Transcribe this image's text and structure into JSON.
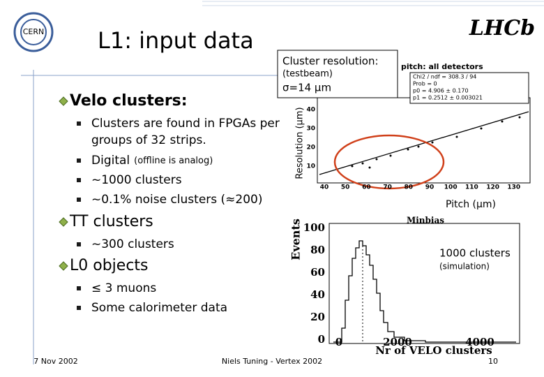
{
  "header": {
    "title": "L1: input data",
    "logo_left": "CERN",
    "logo_right": "LHCb"
  },
  "sections": [
    {
      "heading": "Velo clusters:",
      "items": [
        {
          "text": "Clusters are found in FPGAs per"
        },
        {
          "text": "groups of 32 strips."
        },
        {
          "text": "Digital",
          "note": "(offline is analog)"
        },
        {
          "text": "~1000 clusters"
        },
        {
          "text": "~0.1% noise clusters (≈200)"
        }
      ]
    },
    {
      "heading": "TT clusters",
      "items": [
        {
          "text": "~300 clusters"
        }
      ]
    },
    {
      "heading": "L0 objects",
      "items": [
        {
          "text": "≤ 3 muons"
        },
        {
          "text": "Some calorimeter data"
        }
      ]
    }
  ],
  "resolution_plot": {
    "callout_title": "Cluster resolution:",
    "callout_subtitle": "(testbeam)",
    "callout_value": "σ=14 μm",
    "title": "pitch: all detectors",
    "y_label": "Resolution (μm)",
    "x_label": "Pitch (μm)",
    "fit": [
      "Chi2 / ndf = 308.3 / 94",
      "Prob = 0",
      "p0 = 4.906 ± 0.170",
      "p1 = 0.2512 ± 0.003021"
    ],
    "x_ticks": [
      "40",
      "50",
      "60",
      "70",
      "80",
      "90",
      "100",
      "110",
      "120",
      "130"
    ],
    "y_ticks": [
      "40",
      "30",
      "20",
      "10"
    ]
  },
  "multiplicity_plot": {
    "title": "Minbias",
    "y_label": "Events",
    "x_label": "Nr of VELO clusters",
    "y_ticks": [
      "100",
      "80",
      "60",
      "40",
      "20",
      "0"
    ],
    "x_ticks": [
      "0",
      "2000",
      "4000"
    ],
    "callout_title": "1000 clusters",
    "callout_subtitle": "(simulation)"
  },
  "footer": {
    "date": "7 Nov 2002",
    "author": "Niels Tuning - Vertex 2002",
    "page": "10"
  }
}
